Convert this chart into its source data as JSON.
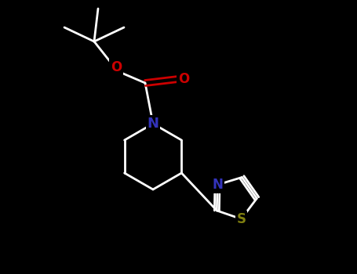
{
  "background_color": "#000000",
  "bond_color": "#ffffff",
  "atom_colors": {
    "N_piperidine": "#3333bb",
    "N_thiazole": "#3333bb",
    "O": "#cc0000",
    "S": "#808010",
    "C": "#ffffff"
  },
  "figsize": [
    4.55,
    3.5
  ],
  "dpi": 100
}
